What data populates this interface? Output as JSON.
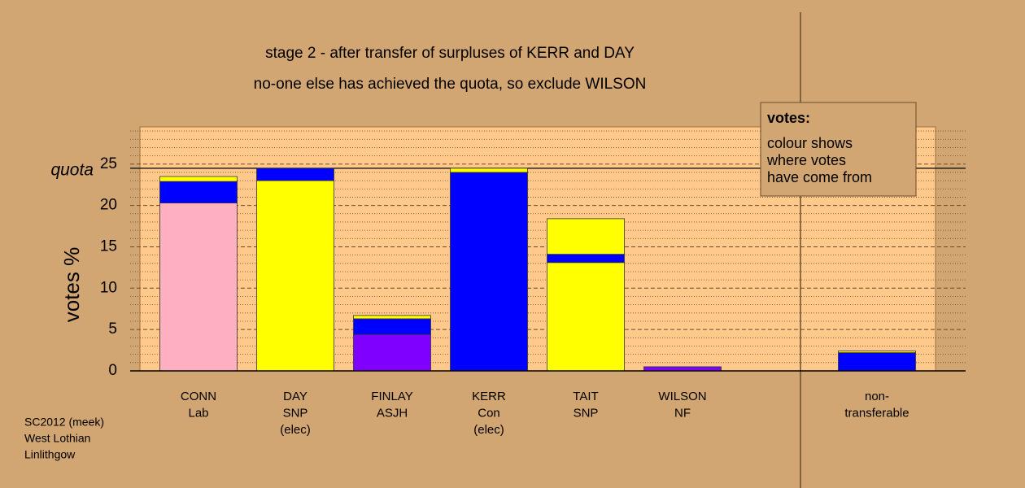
{
  "chart_data": {
    "type": "stacked_bar",
    "title": "stage 2 - after transfer of surpluses of KERR and DAY",
    "subtitle": "no-one else has achieved the quota, so exclude WILSON",
    "ylabel": "votes %",
    "categories": [
      [
        "CONN",
        "Lab"
      ],
      [
        "DAY",
        "SNP",
        "(elec)"
      ],
      [
        "FINLAY",
        "ASJH"
      ],
      [
        "KERR",
        "Con",
        "(elec)"
      ],
      [
        "TAIT",
        "SNP"
      ],
      [
        "WILSON",
        "NF"
      ],
      [
        "non-",
        "transferable"
      ]
    ],
    "series": [
      {
        "colors": [
          "#ffb0c0",
          "#ffff00",
          "#8000ff",
          "#0000ff",
          "#ffff00",
          "#8000ff",
          "#0000ff"
        ],
        "values": [
          20.3,
          23.0,
          4.4,
          24.0,
          13.1,
          0.5,
          0
        ]
      },
      {
        "color": "#0000ff",
        "values": [
          2.6,
          1.5,
          1.9,
          0,
          1.0,
          0,
          2.2
        ]
      },
      {
        "color": "#ffff00",
        "values": [
          0.6,
          0,
          0.4,
          0.5,
          4.3,
          0,
          0.2
        ]
      }
    ],
    "quota": 24.5,
    "quota_label": "quota",
    "ylim": [
      0,
      29.5
    ],
    "yticks": [
      0,
      5,
      10,
      15,
      20,
      25
    ],
    "yminorticks": [
      1,
      2,
      3,
      4,
      6,
      7,
      8,
      9,
      11,
      12,
      13,
      14,
      16,
      17,
      18,
      19,
      21,
      22,
      23,
      24,
      26,
      27,
      28,
      29
    ],
    "grid": true,
    "legend": {
      "title": "votes:",
      "lines": [
        "colour shows",
        "where votes",
        "have come from"
      ]
    },
    "footer": [
      "SC2012 (meek)",
      "West Lothian",
      "Linlithgow"
    ]
  }
}
